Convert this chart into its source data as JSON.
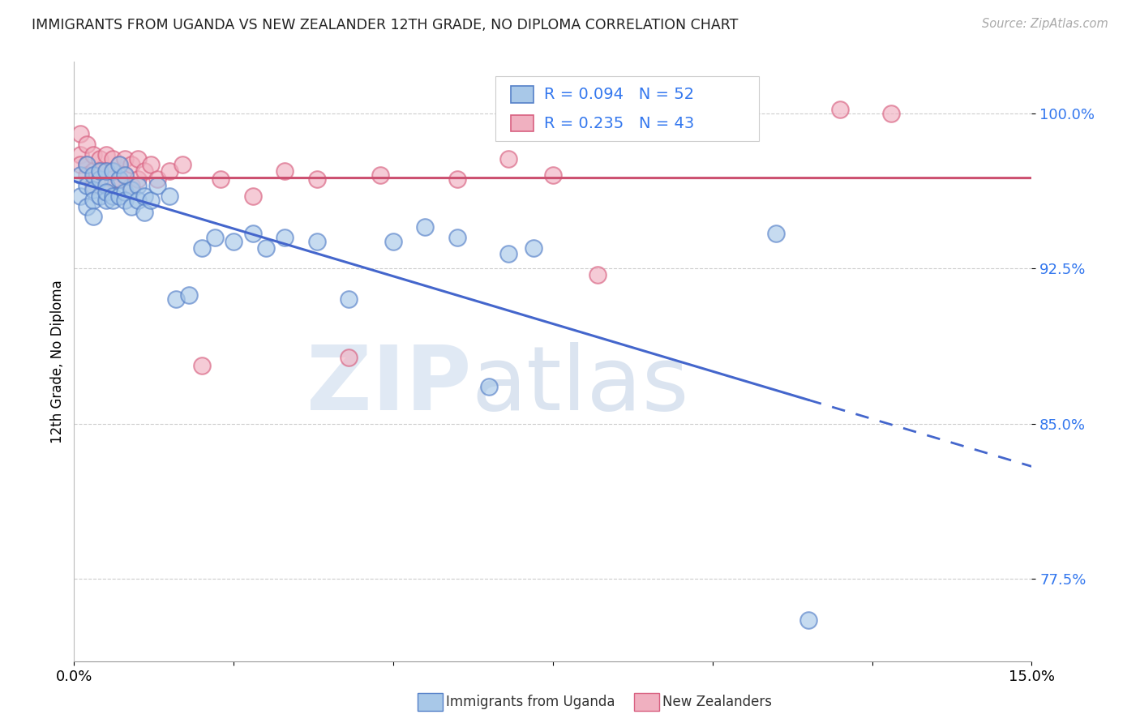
{
  "title": "IMMIGRANTS FROM UGANDA VS NEW ZEALANDER 12TH GRADE, NO DIPLOMA CORRELATION CHART",
  "source": "Source: ZipAtlas.com",
  "ylabel": "12th Grade, No Diploma",
  "xlim": [
    0.0,
    0.15
  ],
  "ylim": [
    0.735,
    1.025
  ],
  "yticks": [
    0.775,
    0.85,
    0.925,
    1.0
  ],
  "ytick_labels": [
    "77.5%",
    "85.0%",
    "92.5%",
    "100.0%"
  ],
  "xticks": [
    0.0,
    0.025,
    0.05,
    0.075,
    0.1,
    0.125,
    0.15
  ],
  "xtick_labels": [
    "0.0%",
    "",
    "",
    "",
    "",
    "",
    "15.0%"
  ],
  "blue_label": "Immigrants from Uganda",
  "pink_label": "New Zealanders",
  "blue_R": 0.094,
  "blue_N": 52,
  "pink_R": 0.235,
  "pink_N": 43,
  "blue_fill": "#a8c8e8",
  "blue_edge": "#5580c8",
  "pink_fill": "#f0b0c0",
  "pink_edge": "#d86080",
  "blue_line": "#4466cc",
  "pink_line": "#cc5070",
  "blue_x": [
    0.001,
    0.001,
    0.002,
    0.002,
    0.002,
    0.003,
    0.003,
    0.003,
    0.003,
    0.004,
    0.004,
    0.004,
    0.005,
    0.005,
    0.005,
    0.005,
    0.006,
    0.006,
    0.006,
    0.007,
    0.007,
    0.007,
    0.008,
    0.008,
    0.008,
    0.009,
    0.009,
    0.01,
    0.01,
    0.011,
    0.011,
    0.012,
    0.013,
    0.015,
    0.016,
    0.018,
    0.02,
    0.022,
    0.025,
    0.028,
    0.03,
    0.033,
    0.038,
    0.043,
    0.05,
    0.055,
    0.06,
    0.065,
    0.068,
    0.072,
    0.11,
    0.115
  ],
  "blue_y": [
    0.97,
    0.96,
    0.975,
    0.965,
    0.955,
    0.97,
    0.963,
    0.958,
    0.95,
    0.968,
    0.96,
    0.972,
    0.965,
    0.958,
    0.972,
    0.962,
    0.96,
    0.972,
    0.958,
    0.968,
    0.96,
    0.975,
    0.962,
    0.97,
    0.958,
    0.963,
    0.955,
    0.965,
    0.958,
    0.96,
    0.952,
    0.958,
    0.965,
    0.96,
    0.91,
    0.912,
    0.935,
    0.94,
    0.938,
    0.942,
    0.935,
    0.94,
    0.938,
    0.91,
    0.938,
    0.945,
    0.94,
    0.868,
    0.932,
    0.935,
    0.942,
    0.755
  ],
  "pink_x": [
    0.001,
    0.001,
    0.001,
    0.002,
    0.002,
    0.002,
    0.003,
    0.003,
    0.003,
    0.004,
    0.004,
    0.005,
    0.005,
    0.005,
    0.006,
    0.006,
    0.006,
    0.007,
    0.007,
    0.008,
    0.008,
    0.009,
    0.009,
    0.01,
    0.01,
    0.011,
    0.012,
    0.013,
    0.015,
    0.017,
    0.02,
    0.023,
    0.028,
    0.033,
    0.038,
    0.043,
    0.048,
    0.06,
    0.068,
    0.075,
    0.082,
    0.12,
    0.128
  ],
  "pink_y": [
    0.98,
    0.99,
    0.975,
    0.985,
    0.975,
    0.97,
    0.98,
    0.972,
    0.965,
    0.978,
    0.972,
    0.98,
    0.972,
    0.965,
    0.978,
    0.972,
    0.968,
    0.975,
    0.968,
    0.978,
    0.97,
    0.975,
    0.965,
    0.978,
    0.968,
    0.972,
    0.975,
    0.968,
    0.972,
    0.975,
    0.878,
    0.968,
    0.96,
    0.972,
    0.968,
    0.882,
    0.97,
    0.968,
    0.978,
    0.97,
    0.922,
    1.002,
    1.0
  ],
  "watermark_zip": "ZIP",
  "watermark_atlas": "atlas",
  "background_color": "#ffffff",
  "grid_color": "#cccccc"
}
